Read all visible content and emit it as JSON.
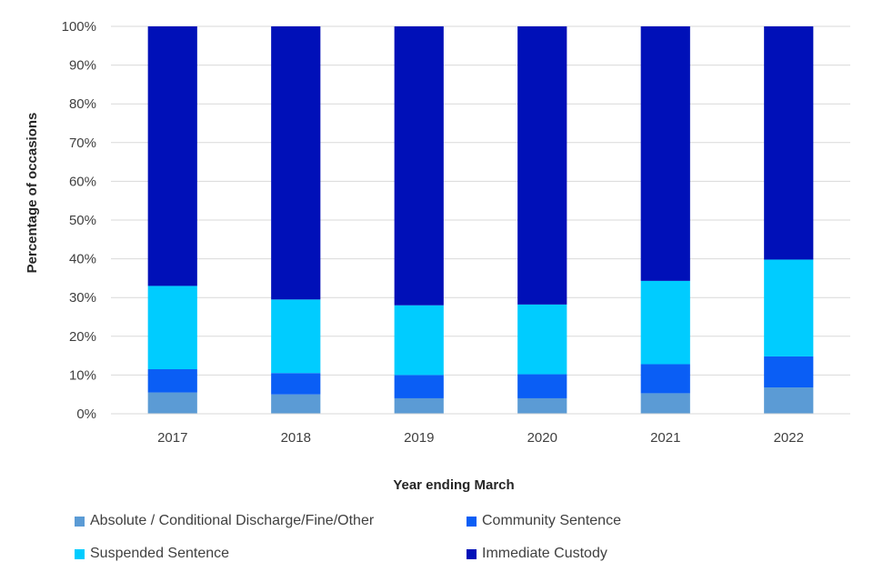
{
  "chart_data": {
    "type": "bar",
    "stacked": true,
    "categories": [
      "2017",
      "2018",
      "2019",
      "2020",
      "2021",
      "2022"
    ],
    "series": [
      {
        "name": "Absolute / Conditional Discharge/Fine/Other",
        "color": "#5b9bd5",
        "values": [
          5.5,
          5.0,
          4.0,
          4.0,
          5.3,
          6.8
        ]
      },
      {
        "name": "Community Sentence",
        "color": "#0a5ef5",
        "values": [
          6.0,
          5.5,
          6.0,
          6.2,
          7.5,
          8.0
        ]
      },
      {
        "name": "Suspended Sentence",
        "color": "#00ccff",
        "values": [
          21.5,
          19.0,
          18.0,
          18.0,
          21.5,
          25.0
        ]
      },
      {
        "name": "Immediate Custody",
        "color": "#0010b8",
        "values": [
          67.0,
          70.5,
          72.0,
          71.8,
          65.7,
          60.2
        ]
      }
    ],
    "xlabel": "Year ending March",
    "ylabel": "Percentage of occasions",
    "ylim": [
      0,
      100
    ],
    "yticks": [
      "0%",
      "10%",
      "20%",
      "30%",
      "40%",
      "50%",
      "60%",
      "70%",
      "80%",
      "90%",
      "100%"
    ],
    "grid": true,
    "legend_position": "bottom"
  }
}
